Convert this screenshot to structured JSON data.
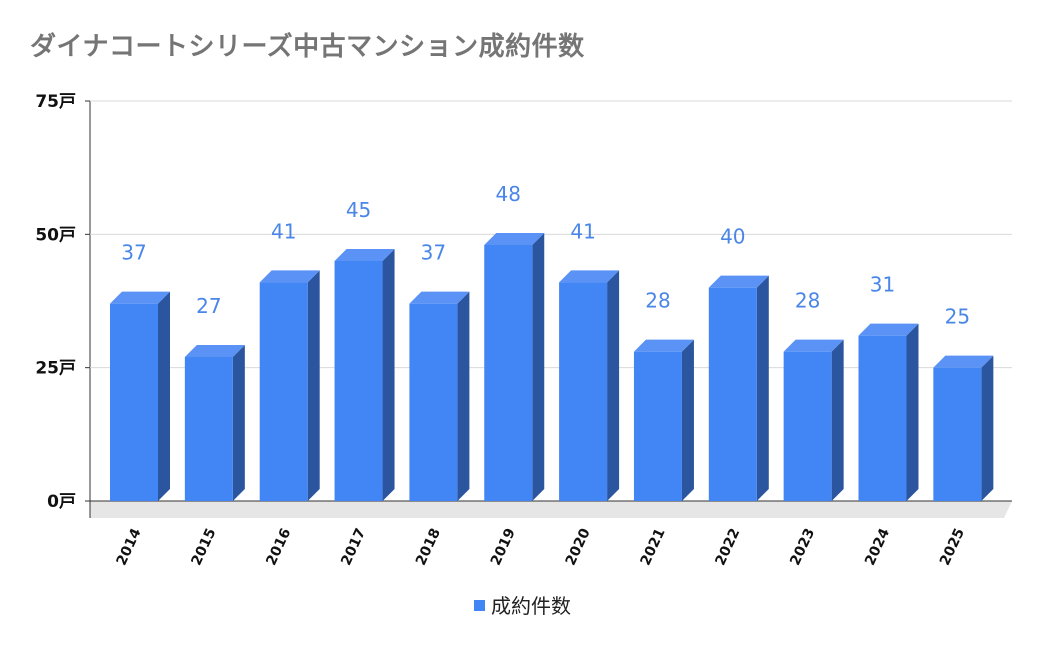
{
  "chart_data": {
    "type": "bar",
    "title": "ダイナコートシリーズ中古マンション成約件数",
    "categories": [
      "2014",
      "2015",
      "2016",
      "2017",
      "2018",
      "2019",
      "2020",
      "2021",
      "2022",
      "2023",
      "2024",
      "2025"
    ],
    "series": [
      {
        "name": "成約件数",
        "values": [
          37,
          27,
          41,
          45,
          37,
          48,
          41,
          28,
          40,
          28,
          31,
          25
        ]
      }
    ],
    "y_ticks": [
      "0戸",
      "25戸",
      "50戸",
      "75戸"
    ],
    "y_tick_values": [
      0,
      25,
      50,
      75
    ],
    "ylim": [
      0,
      75
    ],
    "grid": true,
    "legend_position": "bottom",
    "style": "3d-bar",
    "colors": {
      "bar_front": "#4285f4",
      "bar_top": "#5a93f5",
      "bar_side": "#2b559e",
      "label": "#4a86e8",
      "grid": "#d9d9d9",
      "title": "#757575"
    }
  }
}
